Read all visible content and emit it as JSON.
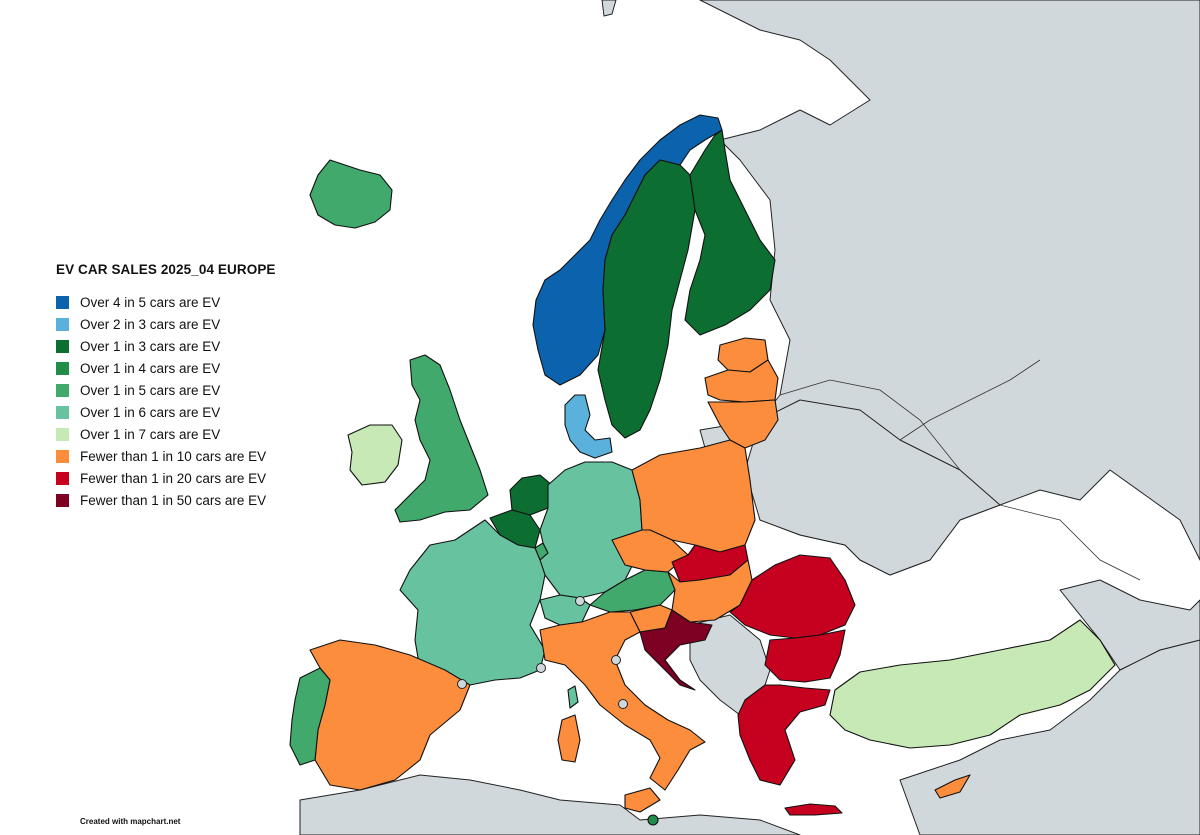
{
  "title": "EV CAR SALES 2025_04 EUROPE",
  "credit": "Created with mapchart.net",
  "colors": {
    "nonreporting": "#d1d8dc",
    "background": "#ffffff",
    "border": "#111111"
  },
  "legend": [
    {
      "label": "Over 4 in 5 cars are EV",
      "color": "#0c63ad"
    },
    {
      "label": "Over 2 in 3 cars are EV",
      "color": "#5ab2dc"
    },
    {
      "label": "Over 1 in 3 cars are EV",
      "color": "#0d6e31"
    },
    {
      "label": "Over 1 in 4 cars are EV",
      "color": "#238c48"
    },
    {
      "label": "Over 1 in 5 cars are EV",
      "color": "#41a96b"
    },
    {
      "label": "Over 1 in 6 cars are EV",
      "color": "#66c29f"
    },
    {
      "label": "Over 1 in 7 cars are EV",
      "color": "#c7e9b5"
    },
    {
      "label": "Fewer than 1 in 10 cars are EV",
      "color": "#fb8d3d"
    },
    {
      "label": "Fewer than 1 in 20 cars are EV",
      "color": "#c6001f"
    },
    {
      "label": "Fewer than 1 in 50 cars are EV",
      "color": "#7e0022"
    }
  ],
  "countries": [
    {
      "name": "Norway",
      "category": 0
    },
    {
      "name": "Denmark",
      "category": 1
    },
    {
      "name": "Sweden",
      "category": 2
    },
    {
      "name": "Finland",
      "category": 2
    },
    {
      "name": "Netherlands",
      "category": 2
    },
    {
      "name": "Belgium",
      "category": 2
    },
    {
      "name": "Iceland",
      "category": 4
    },
    {
      "name": "United Kingdom",
      "category": 4
    },
    {
      "name": "Portugal",
      "category": 4
    },
    {
      "name": "Austria",
      "category": 4
    },
    {
      "name": "Luxembourg",
      "category": 4
    },
    {
      "name": "Malta",
      "category": 3
    },
    {
      "name": "Germany",
      "category": 5
    },
    {
      "name": "France",
      "category": 5
    },
    {
      "name": "Switzerland",
      "category": 5
    },
    {
      "name": "Ireland",
      "category": 6
    },
    {
      "name": "Turkey",
      "category": 6
    },
    {
      "name": "Spain",
      "category": 7
    },
    {
      "name": "Italy",
      "category": 7
    },
    {
      "name": "Poland",
      "category": 7
    },
    {
      "name": "Czechia",
      "category": 7
    },
    {
      "name": "Hungary",
      "category": 7
    },
    {
      "name": "Slovenia",
      "category": 7
    },
    {
      "name": "Estonia",
      "category": 7
    },
    {
      "name": "Latvia",
      "category": 7
    },
    {
      "name": "Lithuania",
      "category": 7
    },
    {
      "name": "Cyprus",
      "category": 7
    },
    {
      "name": "Slovakia",
      "category": 8
    },
    {
      "name": "Romania",
      "category": 8
    },
    {
      "name": "Bulgaria",
      "category": 8
    },
    {
      "name": "Greece",
      "category": 8
    },
    {
      "name": "Croatia",
      "category": 9
    }
  ]
}
